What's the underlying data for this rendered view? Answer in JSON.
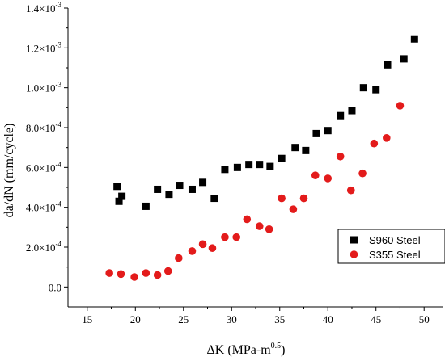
{
  "chart_data": {
    "type": "scatter",
    "xlabel": {
      "base": "ΔK (MPa-m",
      "sup": "0.5",
      "end": ")"
    },
    "ylabel": "da/dN (mm/cycle)",
    "xlim": [
      13,
      52
    ],
    "ylim": [
      -0.0001,
      0.0014
    ],
    "x_ticks": [
      15,
      20,
      25,
      30,
      35,
      40,
      45,
      50
    ],
    "y_ticks": [
      {
        "value": 0.0,
        "label": "0.0",
        "sup": ""
      },
      {
        "value": 0.0002,
        "label": "2.0×10",
        "sup": "-4"
      },
      {
        "value": 0.0004,
        "label": "4.0×10",
        "sup": "-4"
      },
      {
        "value": 0.0006,
        "label": "6.0×10",
        "sup": "-4"
      },
      {
        "value": 0.0008,
        "label": "8.0×10",
        "sup": "-4"
      },
      {
        "value": 0.001,
        "label": "1.0×10",
        "sup": "-3"
      },
      {
        "value": 0.0012,
        "label": "1.2×10",
        "sup": "-3"
      },
      {
        "value": 0.0014,
        "label": "1.4×10",
        "sup": "-3"
      }
    ],
    "series": [
      {
        "name": "S960 Steel",
        "marker": "square",
        "color": "#000000",
        "points": [
          {
            "x": 18.1,
            "y": 0.000505
          },
          {
            "x": 18.3,
            "y": 0.00043
          },
          {
            "x": 18.6,
            "y": 0.000455
          },
          {
            "x": 21.1,
            "y": 0.000405
          },
          {
            "x": 22.3,
            "y": 0.00049
          },
          {
            "x": 23.5,
            "y": 0.000465
          },
          {
            "x": 24.6,
            "y": 0.00051
          },
          {
            "x": 25.9,
            "y": 0.00049
          },
          {
            "x": 27.0,
            "y": 0.000525
          },
          {
            "x": 28.2,
            "y": 0.000445
          },
          {
            "x": 29.3,
            "y": 0.00059
          },
          {
            "x": 30.6,
            "y": 0.0006
          },
          {
            "x": 31.8,
            "y": 0.000615
          },
          {
            "x": 32.9,
            "y": 0.000615
          },
          {
            "x": 34.0,
            "y": 0.000605
          },
          {
            "x": 35.2,
            "y": 0.000645
          },
          {
            "x": 36.6,
            "y": 0.0007
          },
          {
            "x": 37.7,
            "y": 0.000685
          },
          {
            "x": 38.8,
            "y": 0.00077
          },
          {
            "x": 40.0,
            "y": 0.000785
          },
          {
            "x": 41.3,
            "y": 0.00086
          },
          {
            "x": 42.5,
            "y": 0.000885
          },
          {
            "x": 43.7,
            "y": 0.001
          },
          {
            "x": 45.0,
            "y": 0.00099
          },
          {
            "x": 46.2,
            "y": 0.001115
          },
          {
            "x": 47.9,
            "y": 0.001145
          },
          {
            "x": 49.0,
            "y": 0.001245
          }
        ]
      },
      {
        "name": "S355 Steel",
        "marker": "circle",
        "color": "#e31b1b",
        "points": [
          {
            "x": 17.3,
            "y": 7e-05
          },
          {
            "x": 18.5,
            "y": 6.5e-05
          },
          {
            "x": 19.9,
            "y": 5e-05
          },
          {
            "x": 21.1,
            "y": 7e-05
          },
          {
            "x": 22.3,
            "y": 6e-05
          },
          {
            "x": 23.4,
            "y": 8e-05
          },
          {
            "x": 24.5,
            "y": 0.000145
          },
          {
            "x": 25.9,
            "y": 0.00018
          },
          {
            "x": 27.0,
            "y": 0.000215
          },
          {
            "x": 28.0,
            "y": 0.000195
          },
          {
            "x": 29.3,
            "y": 0.00025
          },
          {
            "x": 30.5,
            "y": 0.00025
          },
          {
            "x": 31.6,
            "y": 0.00034
          },
          {
            "x": 32.9,
            "y": 0.000305
          },
          {
            "x": 33.9,
            "y": 0.00029
          },
          {
            "x": 35.2,
            "y": 0.000445
          },
          {
            "x": 36.4,
            "y": 0.00039
          },
          {
            "x": 37.5,
            "y": 0.000445
          },
          {
            "x": 38.7,
            "y": 0.00056
          },
          {
            "x": 40.0,
            "y": 0.000545
          },
          {
            "x": 41.3,
            "y": 0.000655
          },
          {
            "x": 42.4,
            "y": 0.000485
          },
          {
            "x": 43.6,
            "y": 0.00057
          },
          {
            "x": 44.8,
            "y": 0.00072
          },
          {
            "x": 46.1,
            "y": 0.000748
          },
          {
            "x": 47.5,
            "y": 0.00091
          }
        ]
      }
    ],
    "legend": {
      "position": "bottom-right"
    },
    "grid": false
  }
}
